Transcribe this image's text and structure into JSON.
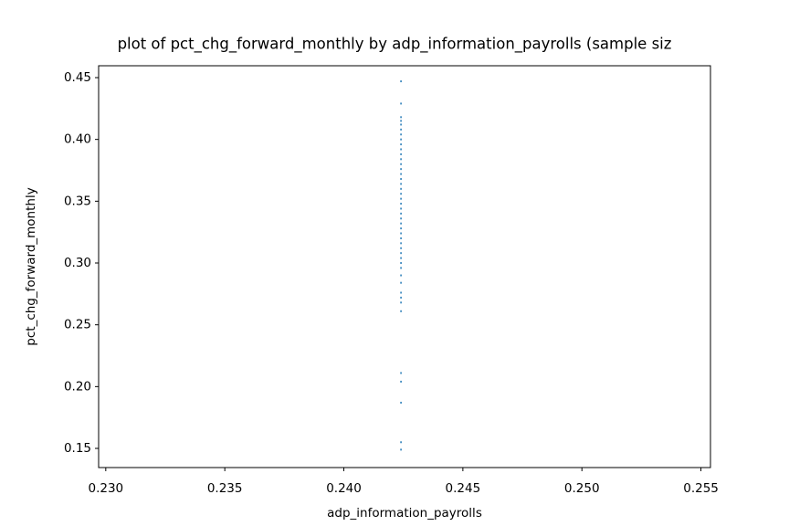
{
  "chart_data": {
    "type": "scatter",
    "title": "plot of pct_chg_forward_monthly by adp_information_payrolls (sample siz",
    "x_label": "adp_information_payrolls",
    "y_label": "pct_chg_forward_monthly",
    "xlim": [
      0.2297,
      0.2554
    ],
    "ylim": [
      0.1345,
      0.4596
    ],
    "xticks": [
      {
        "value": 0.23,
        "label": "0.230"
      },
      0.235,
      {
        "value": 0.24,
        "label": "0.240"
      },
      0.245,
      {
        "value": 0.25,
        "label": "0.250"
      },
      0.255
    ],
    "yticks": [
      0.15,
      {
        "value": 0.2,
        "label": "0.20"
      },
      0.25,
      {
        "value": 0.3,
        "label": "0.30"
      },
      0.35,
      {
        "value": 0.4,
        "label": "0.40"
      },
      0.45
    ],
    "series": [
      {
        "color": "#1f77b4",
        "x": [
          0.2424,
          0.2424,
          0.2424,
          0.2424,
          0.2424,
          0.2424,
          0.2424,
          0.2424,
          0.2424,
          0.2424,
          0.2424,
          0.2424,
          0.2424,
          0.2424,
          0.2424,
          0.2424,
          0.2424,
          0.2424,
          0.2424,
          0.2424,
          0.2424,
          0.2424,
          0.2424,
          0.2424,
          0.2424,
          0.2424,
          0.2424,
          0.2424,
          0.2424,
          0.2424,
          0.2424,
          0.2424,
          0.2424,
          0.2424,
          0.2424,
          0.2424,
          0.2424,
          0.2424,
          0.2424,
          0.2424,
          0.2424,
          0.2424,
          0.2424,
          0.2424,
          0.2424
        ],
        "values": [
          0.447,
          0.429,
          0.418,
          0.415,
          0.412,
          0.408,
          0.404,
          0.4,
          0.396,
          0.392,
          0.388,
          0.384,
          0.38,
          0.376,
          0.372,
          0.368,
          0.364,
          0.36,
          0.356,
          0.352,
          0.348,
          0.344,
          0.34,
          0.336,
          0.332,
          0.328,
          0.324,
          0.32,
          0.316,
          0.312,
          0.308,
          0.304,
          0.3,
          0.296,
          0.29,
          0.284,
          0.276,
          0.272,
          0.268,
          0.261,
          0.211,
          0.204,
          0.187,
          0.155,
          0.149
        ]
      }
    ]
  }
}
